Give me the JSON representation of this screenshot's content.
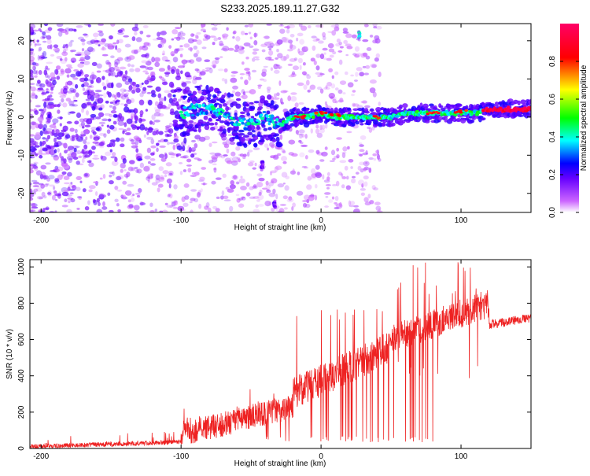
{
  "title": "S233.2025.189.11.27.G32",
  "chart_data": [
    {
      "type": "heatmap",
      "xlabel": "Height of straight line (km)",
      "ylabel": "Frequency (Hz)",
      "xlim": [
        -208,
        150
      ],
      "ylim": [
        -25,
        24.5
      ],
      "xticks": [
        -200,
        -100,
        0,
        100
      ],
      "yticks": [
        -20,
        -10,
        0,
        10,
        20
      ],
      "colorbar": {
        "label": "Normalized spectral amplitude",
        "range": [
          0,
          1
        ],
        "ticks": [
          "0.0",
          "0.2",
          "0.4",
          "0.6",
          "0.8"
        ],
        "colormap": [
          "#ffffff",
          "#cc66ff",
          "#6600ff",
          "#0000ff",
          "#00ffff",
          "#00ff00",
          "#ffff00",
          "#ff0000",
          "#ff0066"
        ]
      },
      "ridge": {
        "x": [
          -100,
          -90,
          -80,
          -70,
          -60,
          -50,
          -40,
          -35,
          -30,
          -25,
          -20,
          -10,
          0,
          10,
          20,
          30,
          40,
          50,
          60,
          70,
          80,
          90,
          100,
          110,
          120,
          150
        ],
        "y": [
          1,
          2,
          2,
          1,
          -1,
          -2,
          0,
          -1,
          -2,
          -1,
          0,
          0,
          1,
          0,
          0,
          0,
          0,
          0,
          1,
          1,
          1,
          1,
          1,
          1,
          2,
          2
        ]
      },
      "isolated_features": [
        {
          "x": 27,
          "y": 21.5,
          "amplitude": 0.4
        },
        {
          "x": -42,
          "y": -12.5,
          "amplitude": 0.2
        },
        {
          "x": -33,
          "y": -23,
          "amplitude": 0.2
        }
      ]
    },
    {
      "type": "line",
      "xlabel": "Height of straight line (km)",
      "ylabel": "SNR (10 * v/v)",
      "xlim": [
        -208,
        150
      ],
      "ylim": [
        0,
        1040
      ],
      "xticks": [
        -200,
        -100,
        0,
        100
      ],
      "yticks": [
        0,
        200,
        400,
        600,
        800,
        1000
      ],
      "line_color": "#ee2222",
      "envelope": [
        {
          "x_range": [
            -208,
            -100
          ],
          "base": [
            10,
            35
          ]
        },
        {
          "x_range": [
            -100,
            -20
          ],
          "base": [
            80,
            230
          ]
        },
        {
          "x_range": [
            -20,
            50
          ],
          "base": [
            300,
            560
          ]
        },
        {
          "x_range": [
            50,
            120
          ],
          "base": [
            600,
            800
          ]
        },
        {
          "x_range": [
            120,
            150
          ],
          "base": [
            680,
            720
          ]
        }
      ]
    }
  ]
}
